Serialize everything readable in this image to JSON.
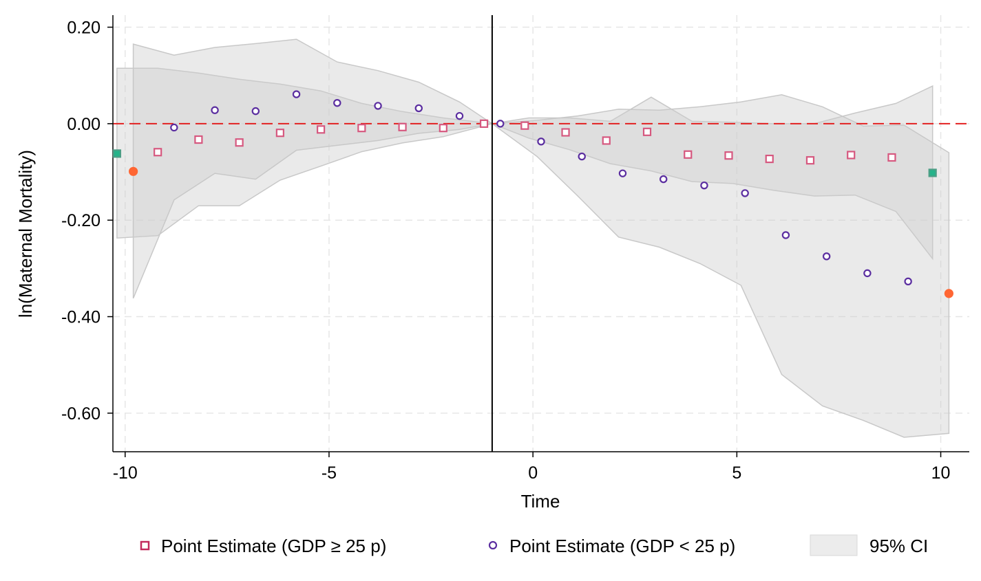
{
  "chart_data": {
    "type": "scatter",
    "title": "",
    "xlabel": "Time",
    "ylabel": "ln(Maternal Mortality)",
    "xlim": [
      -10.3,
      10.7
    ],
    "ylim": [
      -0.68,
      0.225
    ],
    "xticks": [
      -10,
      -5,
      0,
      5,
      10
    ],
    "xtick_labels": [
      "-10",
      "-5",
      "0",
      "5",
      "10"
    ],
    "yticks": [
      0.2,
      0.0,
      -0.2,
      -0.4,
      -0.6
    ],
    "ytick_labels": [
      "0.20",
      "0.00",
      "-0.20",
      "-0.40",
      "-0.60"
    ],
    "grid": true,
    "reference_lines": {
      "vertical_x": -1,
      "horizontal_y": 0
    },
    "colors": {
      "high_marker": "#d6587f",
      "low_marker": "#5b2ea0",
      "ci_fill": "#cccccc",
      "zero_line": "#e32020",
      "endpoint_high": "#26b38a",
      "endpoint_low": "#ff6633"
    },
    "series": [
      {
        "name": "Point Estimate (GDP ≥ 25 p)",
        "marker": "square",
        "x": [
          -10,
          -9,
          -8,
          -7,
          -6,
          -5,
          -4,
          -3,
          -2,
          -1,
          0,
          1,
          2,
          3,
          4,
          5,
          6,
          7,
          8,
          9,
          10
        ],
        "y": [
          -0.062,
          -0.059,
          -0.033,
          -0.039,
          -0.019,
          -0.012,
          -0.009,
          -0.007,
          -0.009,
          0.0,
          -0.004,
          -0.018,
          -0.035,
          -0.017,
          -0.064,
          -0.066,
          -0.073,
          -0.076,
          -0.065,
          -0.07,
          -0.102
        ]
      },
      {
        "name": "Point Estimate (GDP < 25 p)",
        "marker": "circle",
        "x": [
          -10,
          -9,
          -8,
          -7,
          -6,
          -5,
          -4,
          -3,
          -2,
          -1,
          0,
          1,
          2,
          3,
          4,
          5,
          6,
          7,
          8,
          9,
          10
        ],
        "y": [
          -0.099,
          -0.008,
          0.028,
          0.026,
          0.061,
          0.043,
          0.037,
          0.032,
          0.016,
          0.0,
          -0.037,
          -0.068,
          -0.103,
          -0.115,
          -0.128,
          -0.144,
          -0.231,
          -0.275,
          -0.31,
          -0.327,
          -0.352
        ]
      }
    ],
    "ci_bands": [
      {
        "x": [
          -10,
          -9,
          -8,
          -7,
          -6,
          -5,
          -4,
          -3,
          -2,
          -1,
          0,
          1,
          2,
          3,
          4,
          5,
          6,
          7,
          8,
          9,
          10
        ],
        "upper": [
          0.115,
          0.115,
          0.105,
          0.092,
          0.082,
          0.068,
          0.042,
          0.025,
          0.012,
          0.0,
          0.012,
          0.012,
          0.005,
          0.055,
          0.005,
          0.003,
          0.0,
          0.0,
          0.022,
          0.042,
          0.078
        ],
        "lower": [
          -0.237,
          -0.232,
          -0.17,
          -0.17,
          -0.117,
          -0.088,
          -0.058,
          -0.04,
          -0.027,
          0.0,
          -0.03,
          -0.054,
          -0.083,
          -0.098,
          -0.12,
          -0.124,
          -0.138,
          -0.15,
          -0.148,
          -0.182,
          -0.28
        ]
      },
      {
        "x": [
          -10,
          -9,
          -8,
          -7,
          -6,
          -5,
          -4,
          -3,
          -2,
          -1,
          0,
          1,
          2,
          3,
          4,
          5,
          6,
          7,
          8,
          9,
          10
        ],
        "upper": [
          0.165,
          0.142,
          0.158,
          0.166,
          0.175,
          0.128,
          0.11,
          0.086,
          0.045,
          0.0,
          0.007,
          0.016,
          0.03,
          0.028,
          0.035,
          0.045,
          0.06,
          0.035,
          -0.005,
          -0.003,
          -0.06
        ],
        "lower": [
          -0.362,
          -0.158,
          -0.103,
          -0.115,
          -0.055,
          -0.045,
          -0.035,
          -0.02,
          -0.012,
          0.0,
          -0.068,
          -0.15,
          -0.235,
          -0.256,
          -0.29,
          -0.335,
          -0.52,
          -0.585,
          -0.615,
          -0.65,
          -0.642
        ]
      }
    ],
    "legend": {
      "position": "bottom",
      "entries": [
        "Point Estimate (GDP ≥ 25 p)",
        "Point Estimate (GDP < 25 p)",
        "95% CI"
      ]
    }
  }
}
